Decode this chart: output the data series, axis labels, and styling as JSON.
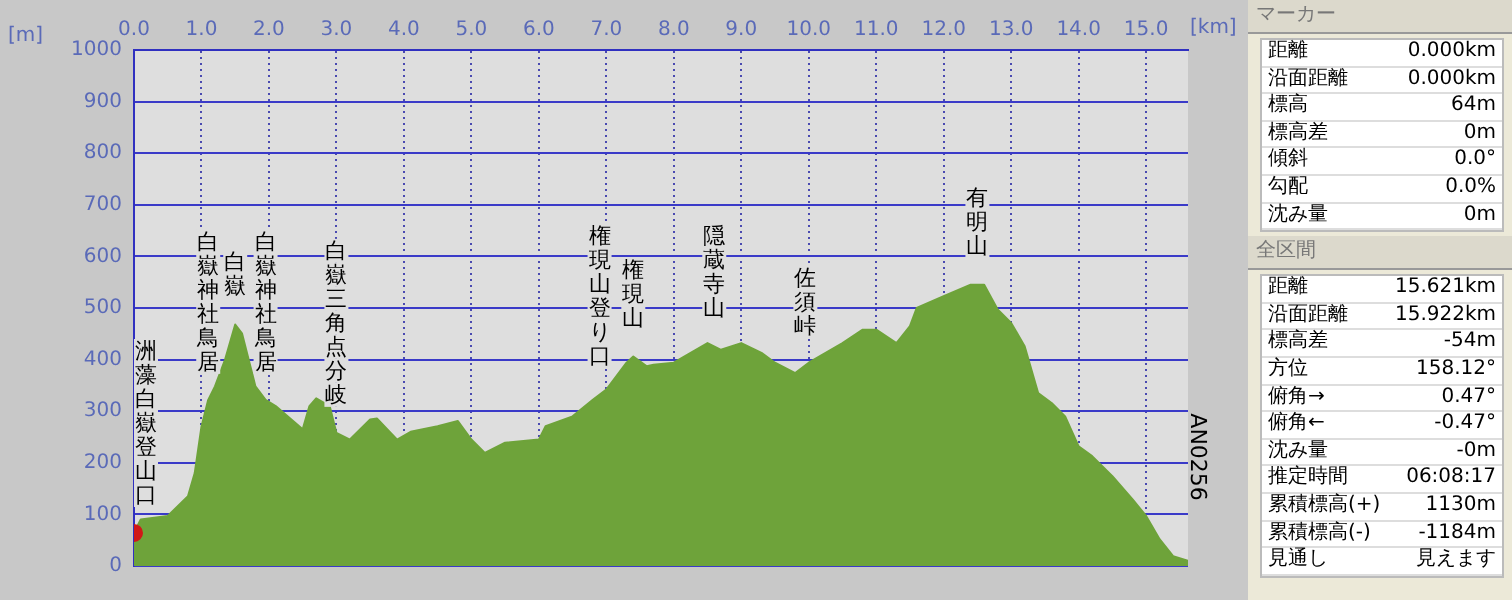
{
  "chart_data": [
    {
      "type": "area",
      "xlabel": "[km]",
      "ylabel": "[m]",
      "xlim": [
        0,
        15.621
      ],
      "ylim": [
        0,
        1000
      ],
      "xticks": [
        {
          "value": 0,
          "label": "0.0"
        },
        {
          "value": 1,
          "label": "1.0"
        },
        {
          "value": 2,
          "label": "2.0"
        },
        {
          "value": 3,
          "label": "3.0"
        },
        {
          "value": 4,
          "label": "4.0"
        },
        {
          "value": 5,
          "label": "5.0"
        },
        {
          "value": 6,
          "label": "6.0"
        },
        {
          "value": 7,
          "label": "7.0"
        },
        {
          "value": 8,
          "label": "8.0"
        },
        {
          "value": 9,
          "label": "9.0"
        },
        {
          "value": 10,
          "label": "10.0"
        },
        {
          "value": 11,
          "label": "11.0"
        },
        {
          "value": 12,
          "label": "12.0"
        },
        {
          "value": 13,
          "label": "13.0"
        },
        {
          "value": 14,
          "label": "14.0"
        },
        {
          "value": 15,
          "label": "15.0"
        }
      ],
      "yticks": [
        0,
        100,
        200,
        300,
        400,
        500,
        600,
        700,
        800,
        900,
        1000
      ],
      "grid": true,
      "series": [
        {
          "type": "area",
          "color": "#6ea33a",
          "x": [
            0,
            0.1,
            0.5,
            0.8,
            0.9,
            1.0,
            1.1,
            1.2,
            1.35,
            1.5,
            1.6,
            1.8,
            1.95,
            2.1,
            2.5,
            2.6,
            2.7,
            2.9,
            3.0,
            3.2,
            3.5,
            3.6,
            3.9,
            4.1,
            4.5,
            4.8,
            5.0,
            5.2,
            5.5,
            6.0,
            6.1,
            6.5,
            6.8,
            7.0,
            7.3,
            7.4,
            7.6,
            7.7,
            8.0,
            8.5,
            8.7,
            9.0,
            9.3,
            9.5,
            9.8,
            10.0,
            10.5,
            10.8,
            11.0,
            11.3,
            11.5,
            11.6,
            12.0,
            12.4,
            12.6,
            12.8,
            13.0,
            13.2,
            13.4,
            13.6,
            13.8,
            14.0,
            14.2,
            14.5,
            14.8,
            15.0,
            15.2,
            15.4,
            15.621
          ],
          "values": [
            64,
            90,
            97,
            135,
            180,
            270,
            322,
            348,
            400,
            468,
            451,
            348,
            322,
            310,
            265,
            310,
            325,
            310,
            258,
            245,
            284,
            286,
            245,
            260,
            271,
            281,
            245,
            219,
            239,
            245,
            271,
            290,
            322,
            342,
            394,
            406,
            387,
            390,
            394,
            432,
            419,
            432,
            413,
            394,
            374,
            394,
            432,
            458,
            458,
            432,
            465,
            500,
            523,
            545,
            545,
            497,
            471,
            426,
            335,
            316,
            290,
            232,
            213,
            174,
            129,
            97,
            52,
            19,
            10
          ]
        },
        {
          "type": "scatter",
          "color": "#d01818",
          "marker": "circle",
          "x": [
            0
          ],
          "values": [
            64
          ]
        }
      ],
      "annotations": [
        {
          "text": "洲藻白嶽登山口",
          "x": 0,
          "y": 64
        },
        {
          "text": "白嶽神社鳥居",
          "x": 1.1,
          "y": 322
        },
        {
          "text": "白嶽",
          "x": 1.5,
          "y": 468
        },
        {
          "text": "白嶽神社鳥居",
          "x": 1.95,
          "y": 322
        },
        {
          "text": "白嶽三角点分岐",
          "x": 3.0,
          "y": 258
        },
        {
          "text": "権現山登り口",
          "x": 6.9,
          "y": 332
        },
        {
          "text": "権現山",
          "x": 7.4,
          "y": 406
        },
        {
          "text": "隠蔵寺山",
          "x": 8.6,
          "y": 425
        },
        {
          "text": "佐須峠",
          "x": 9.95,
          "y": 390
        },
        {
          "text": "有明山",
          "x": 12.5,
          "y": 545
        },
        {
          "text": "AN0256",
          "x": 15.621,
          "y": 10
        }
      ]
    },
    {
      "type": "other",
      "title": "マーカー",
      "annotations": [
        "距離",
        "0.000km",
        "沿面距離",
        "0.000km",
        "標高",
        "64m",
        "標高差",
        "0m",
        "傾斜",
        "0.0°",
        "勾配",
        "0.0%",
        "沈み量",
        "0m"
      ]
    },
    {
      "type": "other",
      "title": "全区間",
      "annotations": [
        "距離",
        "15.621km",
        "沿面距離",
        "15.922km",
        "標高差",
        "-54m",
        "方位",
        "158.12°",
        "俯角→",
        "0.47°",
        "俯角←",
        "-0.47°",
        "沈み量",
        "-0m",
        "推定時間",
        "06:08:17",
        "累積標高(+)",
        "1130m",
        "累積標高(-)",
        "-1184m",
        "見通し",
        "見えます"
      ]
    }
  ]
}
